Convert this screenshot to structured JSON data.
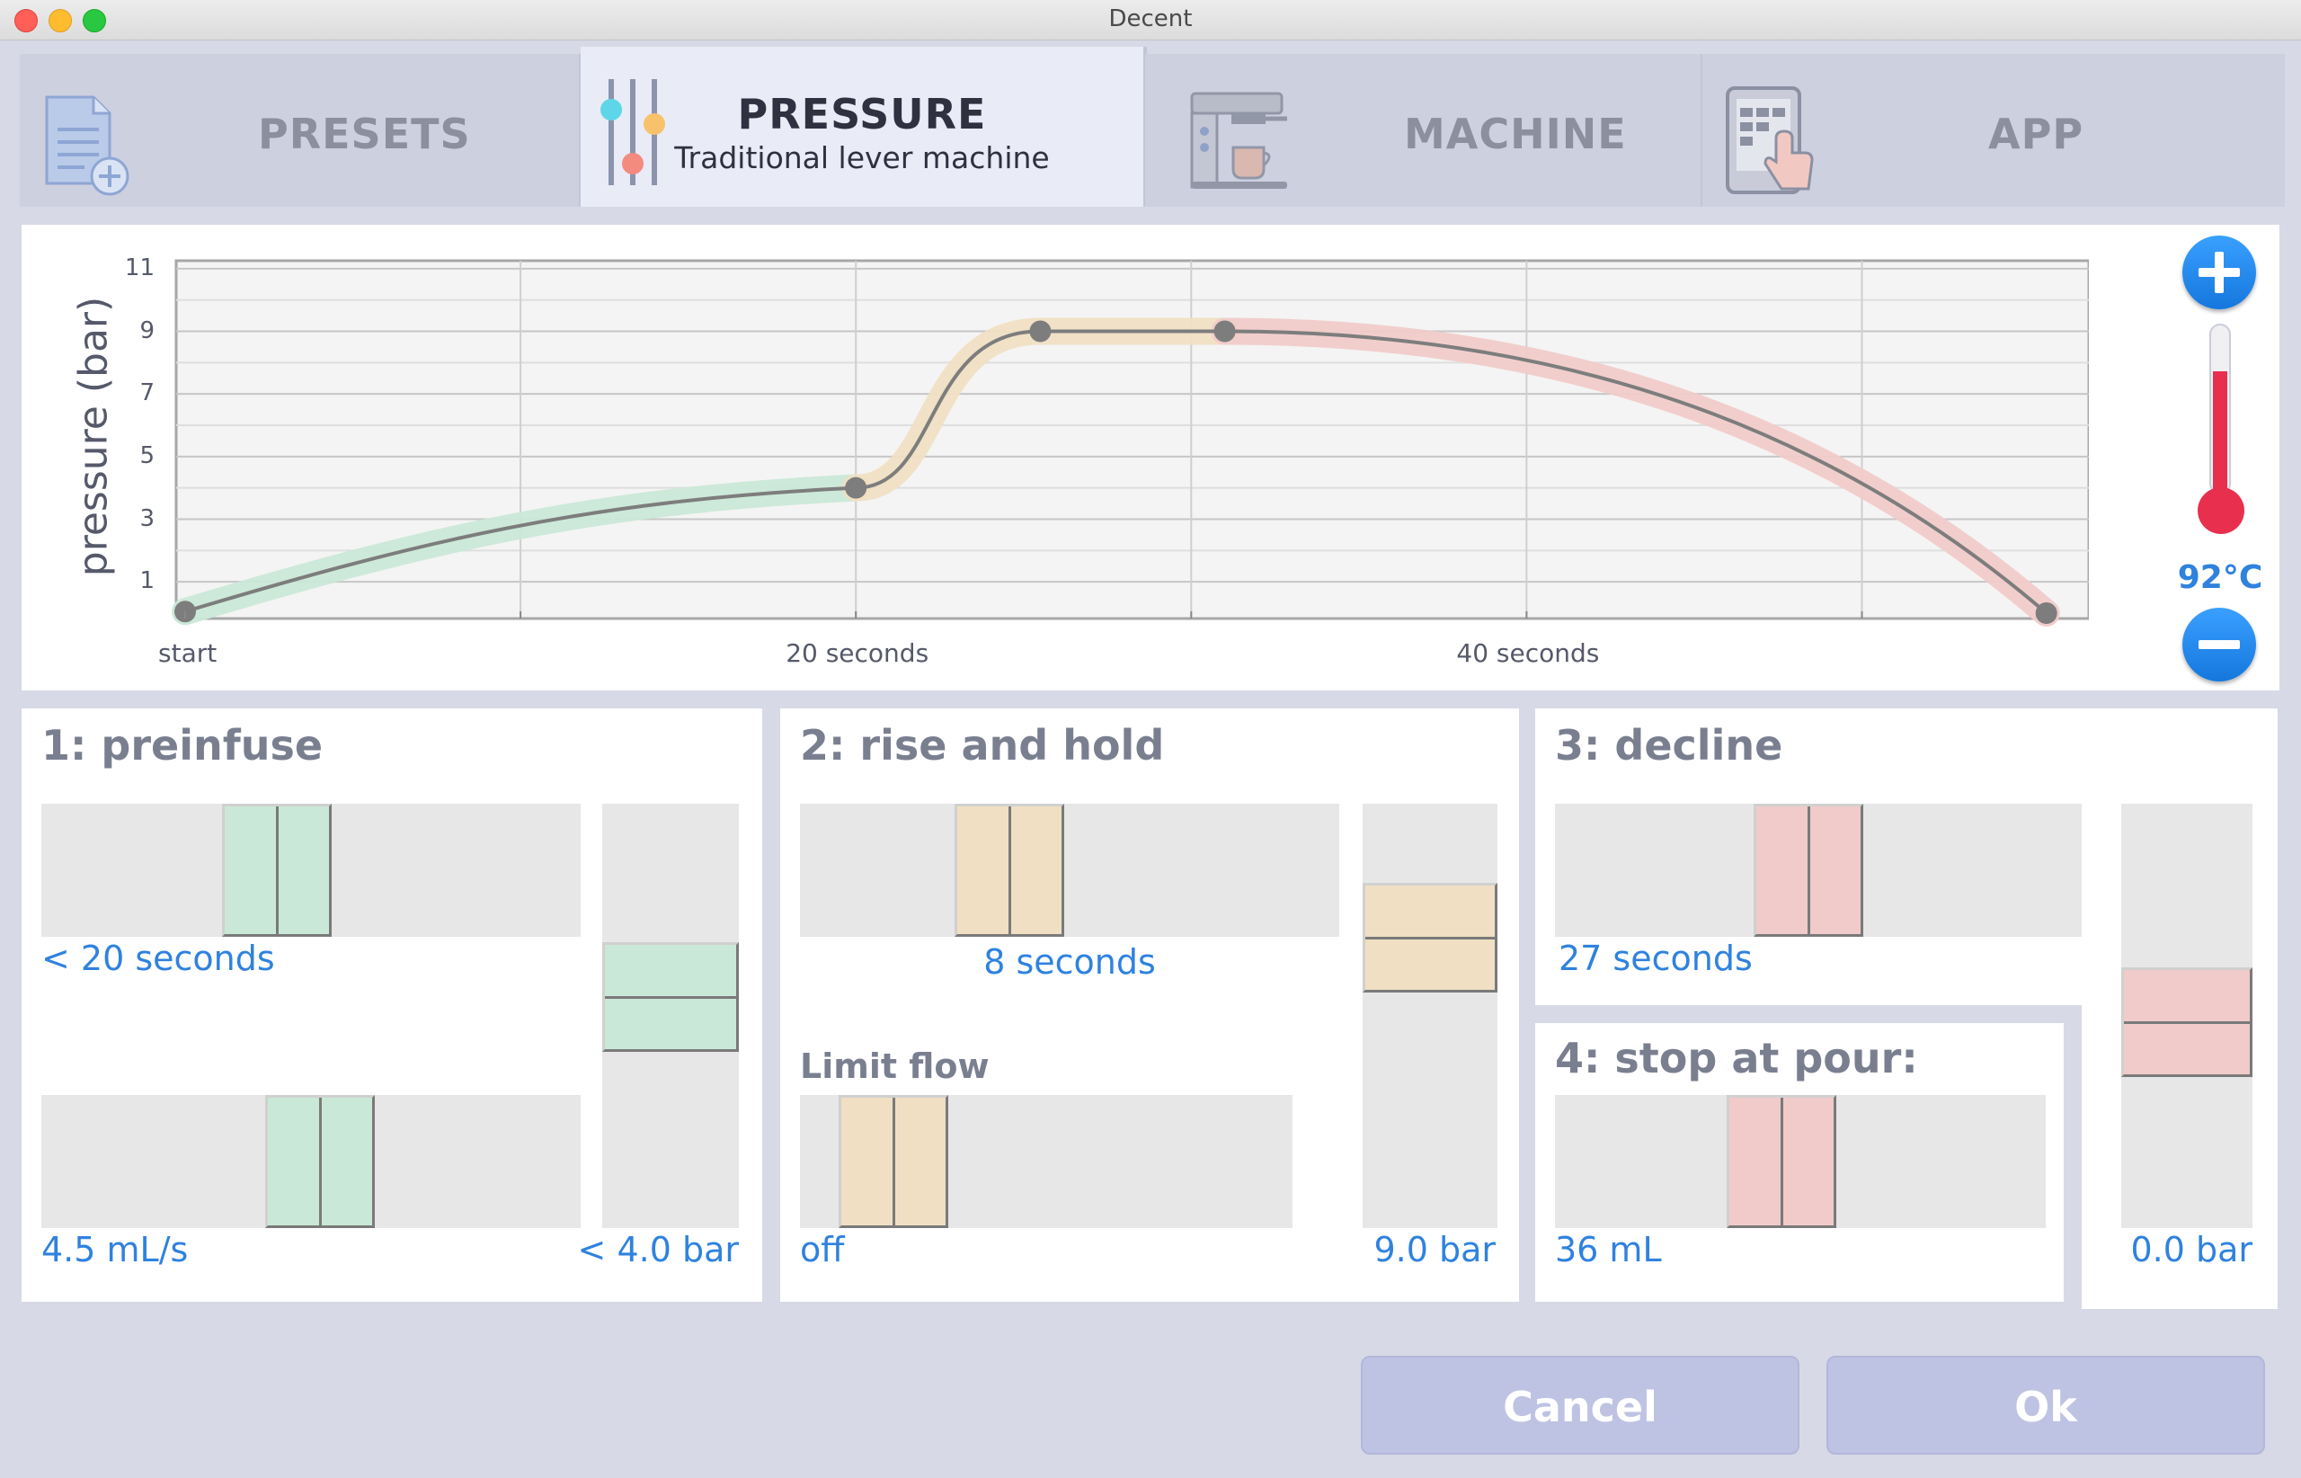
{
  "window": {
    "title": "Decent"
  },
  "tabs": [
    {
      "label": "PRESETS",
      "subtitle": "",
      "icon": "document-plus-icon"
    },
    {
      "label": "PRESSURE",
      "subtitle": "Traditional lever machine",
      "icon": "sliders-icon"
    },
    {
      "label": "MACHINE",
      "subtitle": "",
      "icon": "espresso-machine-icon"
    },
    {
      "label": "APP",
      "subtitle": "",
      "icon": "tablet-touch-icon"
    }
  ],
  "chart_data": {
    "type": "line",
    "ylabel": "pressure (bar)",
    "xlabel": "",
    "ylim": [
      0,
      12
    ],
    "xlim": [
      0,
      56.5
    ],
    "y_ticks": [
      "11",
      "9",
      "7",
      "5",
      "3",
      "1"
    ],
    "x_ticks": [
      "start",
      "20 seconds",
      "40 seconds"
    ],
    "grid": true,
    "points": [
      {
        "x": 0,
        "y": 0.05
      },
      {
        "x": 20,
        "y": 4
      },
      {
        "x": 25.5,
        "y": 9
      },
      {
        "x": 31,
        "y": 9
      },
      {
        "x": 55.5,
        "y": 0
      }
    ],
    "segments": [
      {
        "name": "preinfuse",
        "color": "#cae8d7"
      },
      {
        "name": "rise and hold",
        "color": "#f0dfc3"
      },
      {
        "name": "decline",
        "color": "#f0cbc9"
      }
    ]
  },
  "temperature": {
    "value": "92°C",
    "fill_fraction": 0.72
  },
  "cards": {
    "preinfuse": {
      "title": "1: preinfuse",
      "time_label": "< 20 seconds",
      "flow_label": "4.5 mL/s",
      "pressure_label": "< 4.0 bar",
      "time_fraction": 0.42,
      "flow_fraction": 0.52,
      "pressure_fraction": 0.56
    },
    "rise": {
      "title": "2: rise and hold",
      "time_label": "8 seconds",
      "limit_label": "Limit flow",
      "limit_value": "off",
      "pressure_label": "9.0 bar",
      "time_fraction": 0.36,
      "limit_fraction": 0.1,
      "pressure_fraction": 0.75
    },
    "decline": {
      "title": "3: decline",
      "time_label": "27 seconds",
      "pressure_label": "0.0 bar",
      "time_fraction": 0.46,
      "pressure_fraction": 0.48
    },
    "stop": {
      "title": "4: stop at pour:",
      "volume_label": "36 mL",
      "volume_fraction": 0.45
    }
  },
  "buttons": {
    "cancel": "Cancel",
    "ok": "Ok"
  }
}
